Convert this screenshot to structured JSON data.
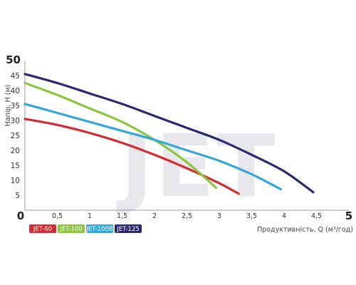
{
  "chart_data": {
    "type": "line",
    "watermark": "JET",
    "xlabel": "Продуктивність, Q (м³/год)",
    "ylabel": "Напір, Н (м)",
    "xlim": [
      0,
      5
    ],
    "ylim": [
      0,
      50
    ],
    "x_ticks": [
      "0",
      "0,5",
      "1",
      "1,5",
      "2",
      "2,5",
      "3",
      "3,5",
      "4",
      "4,5",
      "5"
    ],
    "y_ticks": [
      "5",
      "10",
      "15",
      "20",
      "25",
      "30",
      "35",
      "40",
      "45",
      "50"
    ],
    "grid": false,
    "legend_position": "bottom-left",
    "series": [
      {
        "name": "JET-60",
        "color": "#d42a32",
        "x": [
          0,
          0.5,
          1.0,
          1.5,
          2.0,
          2.5,
          3.0,
          3.3
        ],
        "y": [
          30.5,
          28.5,
          25.8,
          22.5,
          18.5,
          14.0,
          9.0,
          5.5
        ]
      },
      {
        "name": "JET-100",
        "color": "#8cc63f",
        "x": [
          0,
          0.5,
          1.0,
          1.5,
          2.0,
          2.5,
          2.95
        ],
        "y": [
          42.5,
          38.5,
          34.0,
          29.5,
          23.5,
          16.0,
          7.5
        ]
      },
      {
        "name": "JET-100B",
        "color": "#35a8d9",
        "x": [
          0,
          0.5,
          1.0,
          1.5,
          2.0,
          2.5,
          3.0,
          3.5,
          3.95
        ],
        "y": [
          35.5,
          32.5,
          29.5,
          26.5,
          23.5,
          20.0,
          16.5,
          12.0,
          7.0
        ]
      },
      {
        "name": "JET-125",
        "color": "#2b2a6e",
        "x": [
          0,
          0.5,
          1.0,
          1.5,
          2.0,
          2.5,
          3.0,
          3.5,
          4.0,
          4.45
        ],
        "y": [
          45.5,
          42.5,
          39.0,
          35.5,
          31.5,
          27.5,
          23.5,
          18.5,
          13.0,
          6.0
        ]
      }
    ]
  }
}
